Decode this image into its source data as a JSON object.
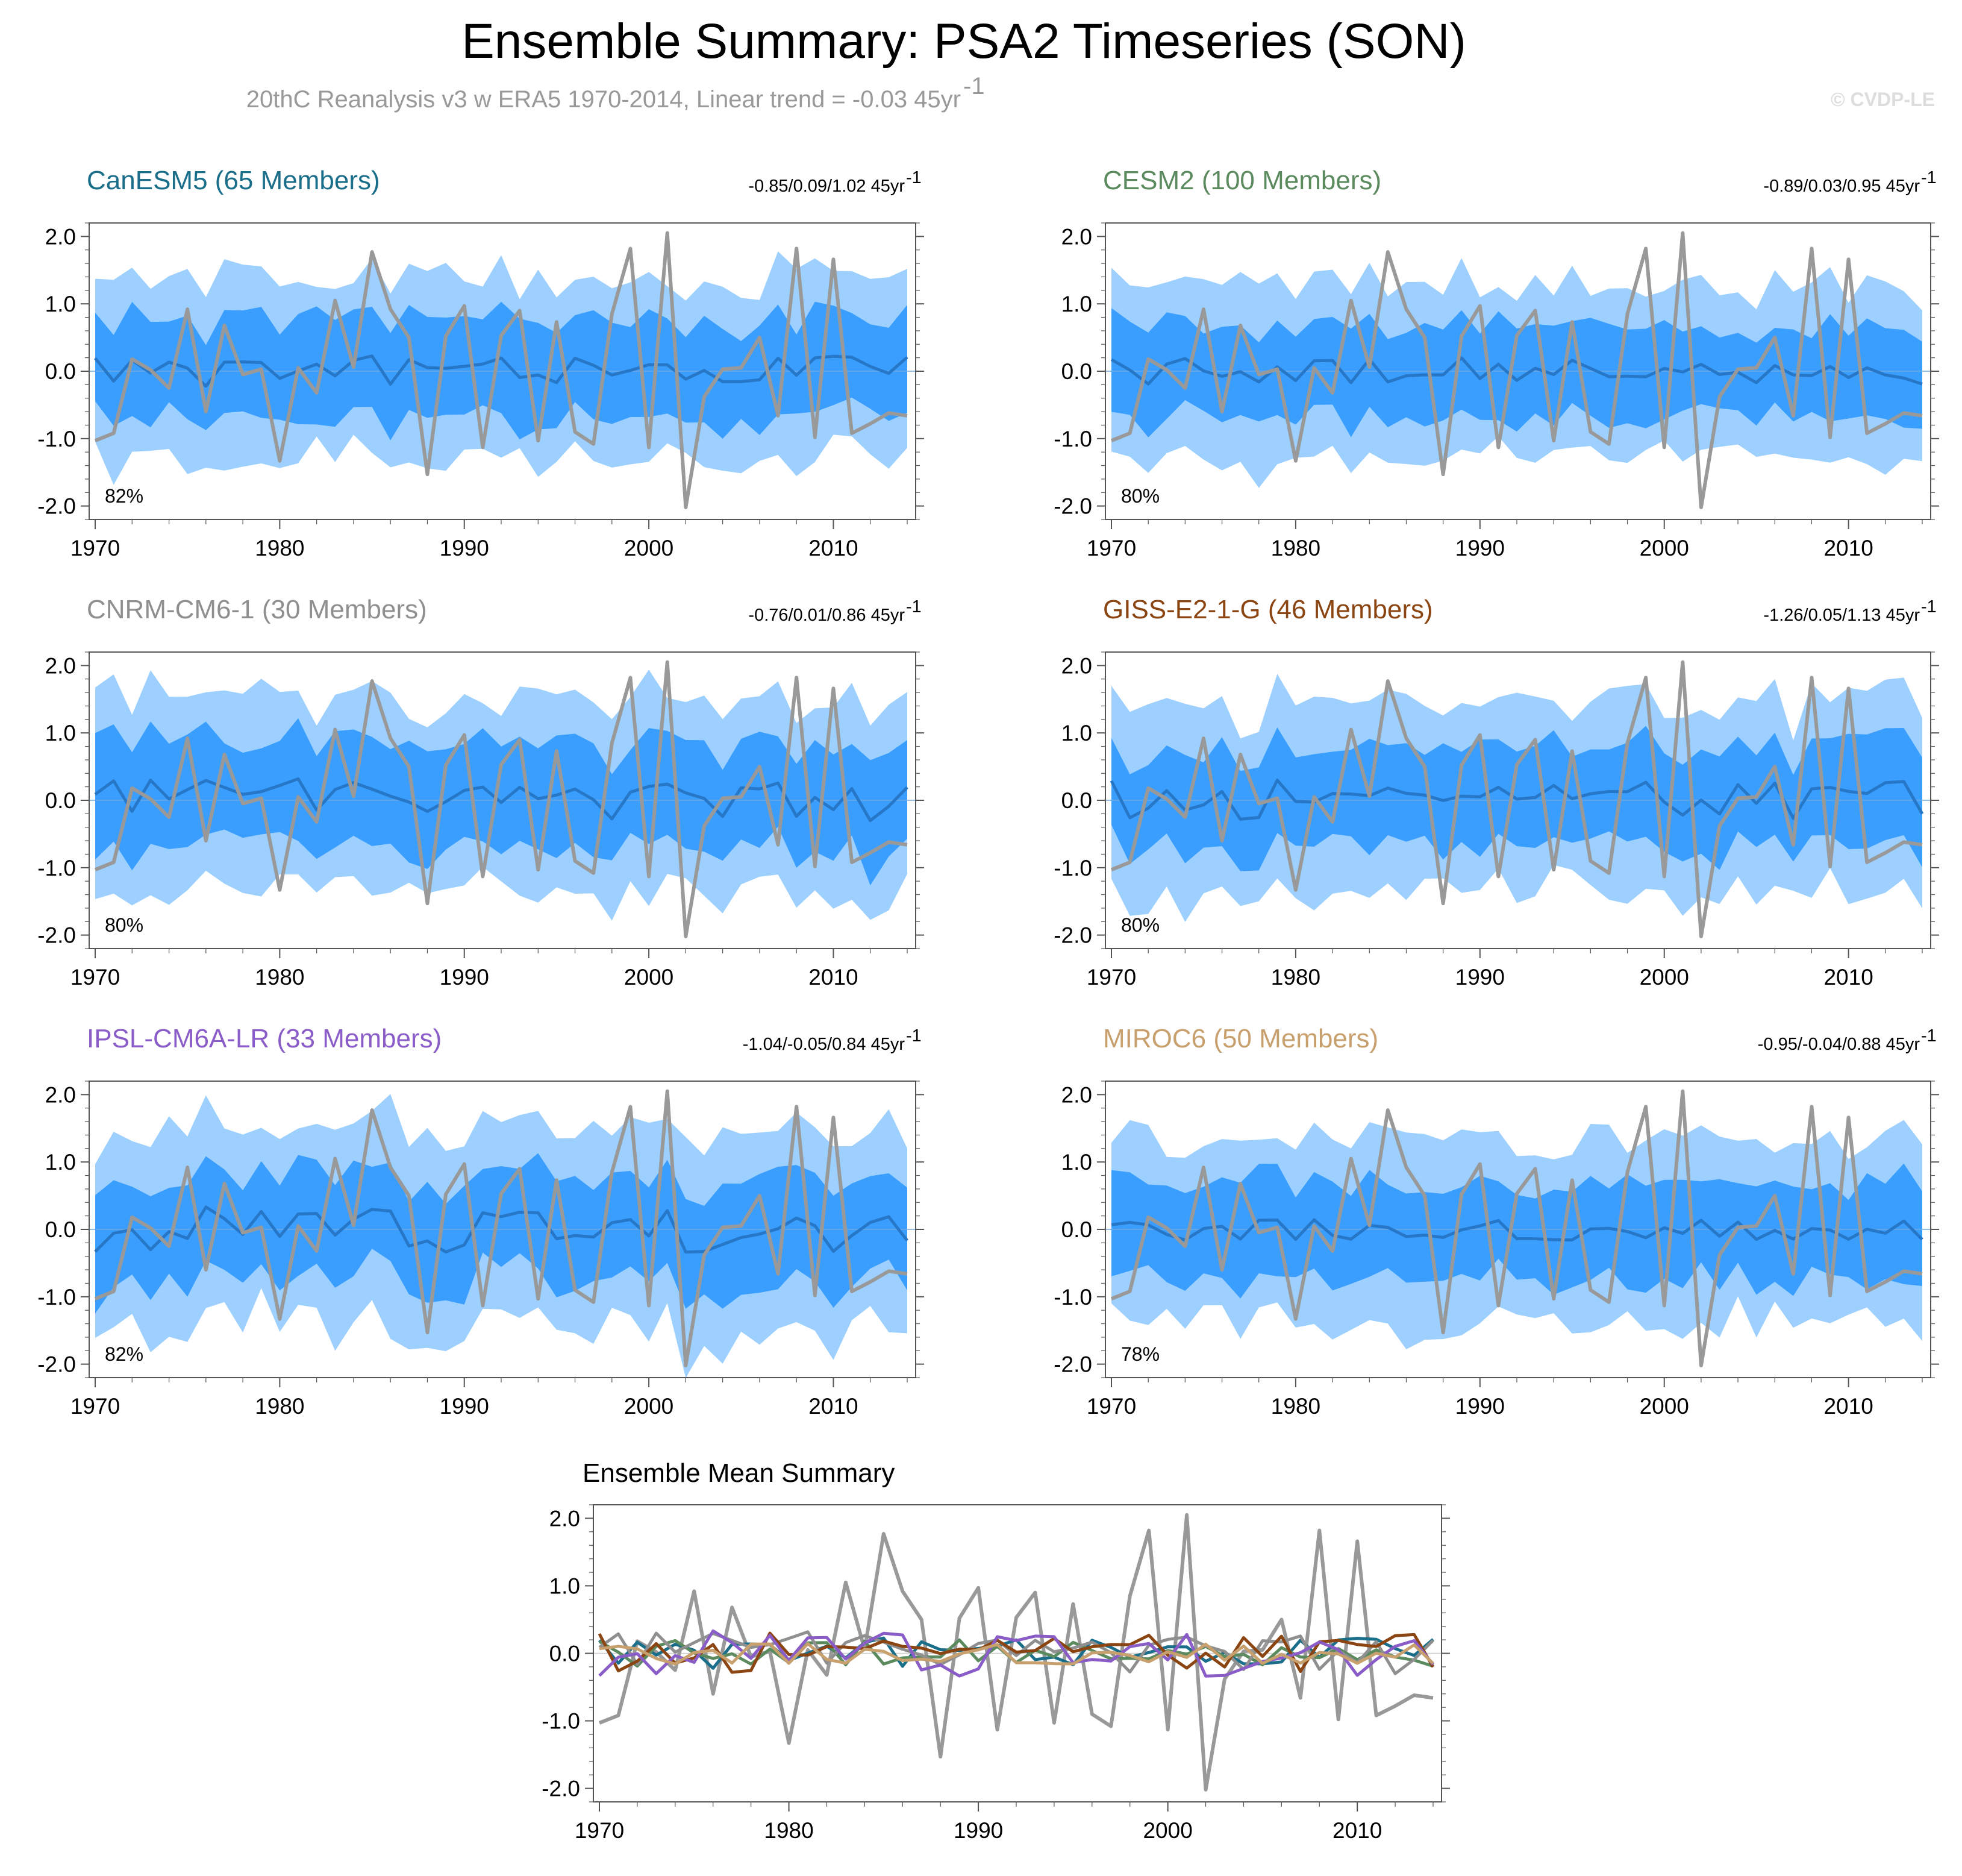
{
  "figure": {
    "title": "Ensemble Summary: PSA2 Timeseries (SON)",
    "subtitle_main": "20thC Reanalysis v3 w ERA5 1970-2014, Linear trend = -0.03 45yr",
    "subtitle_sup": "-1",
    "copyright": "© CVDP-LE"
  },
  "chart_data": [
    {
      "type": "area",
      "title": "CanESM5 (65 Members)",
      "title_color": "#1a6e8a",
      "trend_text": "-0.85/0.09/1.02 45yr",
      "trend_sup": "-1",
      "percent_label": "82%",
      "xlim": [
        1970,
        2014
      ],
      "ylim": [
        -2.2,
        2.2
      ],
      "yticks": [
        2.0,
        1.0,
        0.0,
        -1.0,
        -2.0
      ],
      "ytick_labels": [
        "2.0",
        "1.0",
        "0.0",
        "-1.0",
        "-2.0"
      ],
      "xticks": [
        1970,
        1980,
        1990,
        2000,
        2010
      ],
      "xtick_labels": [
        "1970",
        "1980",
        "1990",
        "2000",
        "2010"
      ],
      "seed": 11,
      "mean_amp": 0.12,
      "inner_w": 0.72,
      "outer_w": 1.33
    },
    {
      "type": "area",
      "title": "CESM2 (100 Members)",
      "title_color": "#5a8a5e",
      "trend_text": "-0.89/0.03/0.95 45yr",
      "trend_sup": "-1",
      "percent_label": "80%",
      "xlim": [
        1970,
        2014
      ],
      "ylim": [
        -2.2,
        2.2
      ],
      "yticks": [
        2.0,
        1.0,
        0.0,
        -1.0,
        -2.0
      ],
      "ytick_labels": [
        "2.0",
        "1.0",
        "0.0",
        "-1.0",
        "-2.0"
      ],
      "xticks": [
        1970,
        1980,
        1990,
        2000,
        2010
      ],
      "xtick_labels": [
        "1970",
        "1980",
        "1990",
        "2000",
        "2010"
      ],
      "seed": 23,
      "mean_amp": 0.1,
      "inner_w": 0.66,
      "outer_w": 1.25
    },
    {
      "type": "area",
      "title": "CNRM-CM6-1 (30 Members)",
      "title_color": "#8f8f8f",
      "trend_text": "-0.76/0.01/0.86 45yr",
      "trend_sup": "-1",
      "percent_label": "80%",
      "xlim": [
        1970,
        2014
      ],
      "ylim": [
        -2.2,
        2.2
      ],
      "yticks": [
        2.0,
        1.0,
        0.0,
        -1.0,
        -2.0
      ],
      "ytick_labels": [
        "2.0",
        "1.0",
        "0.0",
        "-1.0",
        "-2.0"
      ],
      "xticks": [
        1970,
        1980,
        1990,
        2000,
        2010
      ],
      "xtick_labels": [
        "1970",
        "1980",
        "1990",
        "2000",
        "2010"
      ],
      "seed": 37,
      "mean_amp": 0.16,
      "inner_w": 0.75,
      "outer_w": 1.45
    },
    {
      "type": "area",
      "title": "GISS-E2-1-G (46 Members)",
      "title_color": "#8b4513",
      "trend_text": "-1.26/0.05/1.13 45yr",
      "trend_sup": "-1",
      "percent_label": "80%",
      "xlim": [
        1970,
        2014
      ],
      "ylim": [
        -2.2,
        2.2
      ],
      "yticks": [
        2.0,
        1.0,
        0.0,
        -1.0,
        -2.0
      ],
      "ytick_labels": [
        "2.0",
        "1.0",
        "0.0",
        "-1.0",
        "-2.0"
      ],
      "xticks": [
        1970,
        1980,
        1990,
        2000,
        2010
      ],
      "xtick_labels": [
        "1970",
        "1980",
        "1990",
        "2000",
        "2010"
      ],
      "seed": 41,
      "mean_amp": 0.15,
      "inner_w": 0.72,
      "outer_w": 1.35
    },
    {
      "type": "area",
      "title": "IPSL-CM6A-LR (33 Members)",
      "title_color": "#8a5cc8",
      "trend_text": "-1.04/-0.05/0.84 45yr",
      "trend_sup": "-1",
      "percent_label": "82%",
      "xlim": [
        1970,
        2014
      ],
      "ylim": [
        -2.2,
        2.2
      ],
      "yticks": [
        2.0,
        1.0,
        0.0,
        -1.0,
        -2.0
      ],
      "ytick_labels": [
        "2.0",
        "1.0",
        "0.0",
        "-1.0",
        "-2.0"
      ],
      "xticks": [
        1970,
        1980,
        1990,
        2000,
        2010
      ],
      "xtick_labels": [
        "1970",
        "1980",
        "1990",
        "2000",
        "2010"
      ],
      "seed": 53,
      "mean_amp": 0.17,
      "inner_w": 0.76,
      "outer_w": 1.45
    },
    {
      "type": "area",
      "title": "MIROC6 (50 Members)",
      "title_color": "#c8a06e",
      "trend_text": "-0.95/-0.04/0.88 45yr",
      "trend_sup": "-1",
      "percent_label": "78%",
      "xlim": [
        1970,
        2014
      ],
      "ylim": [
        -2.2,
        2.2
      ],
      "yticks": [
        2.0,
        1.0,
        0.0,
        -1.0,
        -2.0
      ],
      "ytick_labels": [
        "2.0",
        "1.0",
        "0.0",
        "-1.0",
        "-2.0"
      ],
      "xticks": [
        1970,
        1980,
        1990,
        2000,
        2010
      ],
      "xtick_labels": [
        "1970",
        "1980",
        "1990",
        "2000",
        "2010"
      ],
      "seed": 67,
      "mean_amp": 0.08,
      "inner_w": 0.7,
      "outer_w": 1.35
    },
    {
      "type": "line",
      "title": "Ensemble Mean Summary",
      "xlim": [
        1970,
        2014
      ],
      "ylim": [
        -2.2,
        2.2
      ],
      "yticks": [
        2.0,
        1.0,
        0.0,
        -1.0,
        -2.0
      ],
      "ytick_labels": [
        "2.0",
        "1.0",
        "0.0",
        "-1.0",
        "-2.0"
      ],
      "xticks": [
        1970,
        1980,
        1990,
        2000,
        2010
      ],
      "xtick_labels": [
        "1970",
        "1980",
        "1990",
        "2000",
        "2010"
      ],
      "series_colors": [
        "#1a6e8a",
        "#5a8a5e",
        "#8f8f8f",
        "#8b4513",
        "#8a5cc8",
        "#c8a06e"
      ]
    }
  ],
  "observed": {
    "name": "20thC Reanalysis v3 w ERA5",
    "color": "#999999",
    "years": [
      1970,
      1971,
      1972,
      1973,
      1974,
      1975,
      1976,
      1977,
      1978,
      1979,
      1980,
      1981,
      1982,
      1983,
      1984,
      1985,
      1986,
      1987,
      1988,
      1989,
      1990,
      1991,
      1992,
      1993,
      1994,
      1995,
      1996,
      1997,
      1998,
      1999,
      2000,
      2001,
      2002,
      2003,
      2004,
      2005,
      2006,
      2007,
      2008,
      2009,
      2010,
      2011,
      2012,
      2013,
      2014
    ],
    "values": [
      -1.03,
      -0.92,
      0.18,
      0.02,
      -0.25,
      0.92,
      -0.6,
      0.68,
      -0.05,
      0.03,
      -1.33,
      0.05,
      -0.32,
      1.05,
      0.06,
      1.77,
      0.92,
      0.5,
      -1.53,
      0.52,
      0.97,
      -1.13,
      0.53,
      0.9,
      -1.03,
      0.73,
      -0.9,
      -1.08,
      0.85,
      1.82,
      -1.13,
      2.05,
      -2.02,
      -0.38,
      0.03,
      0.05,
      0.5,
      -0.66,
      1.82,
      -0.98,
      1.66,
      -0.92,
      -0.78,
      -0.62,
      -0.66
    ]
  },
  "colors": {
    "inner_band": "#3a9eff",
    "outer_band": "#9dd0ff",
    "ensemble_mean": "#2677c7",
    "axis": "#555555"
  }
}
